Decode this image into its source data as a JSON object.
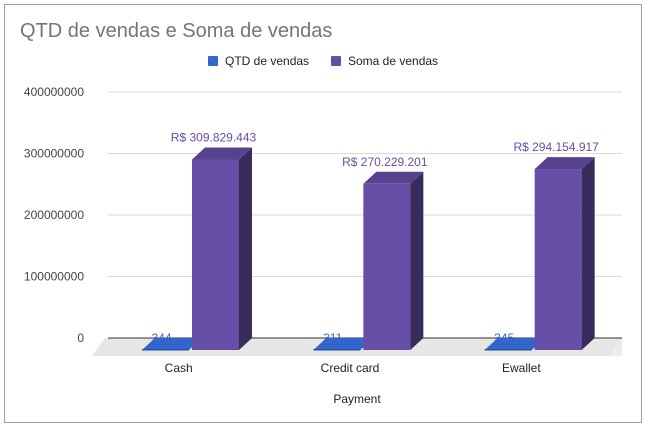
{
  "chart_data": {
    "type": "bar",
    "title": "QTD de vendas e Soma de vendas",
    "xlabel": "Payment",
    "ylabel": "",
    "categories": [
      "Cash",
      "Credit card",
      "Ewallet"
    ],
    "ylim": [
      0,
      400000000
    ],
    "yticks": [
      "0",
      "100000000",
      "200000000",
      "300000000",
      "400000000"
    ],
    "grid": true,
    "legend_position": "top",
    "style": "3d",
    "series": [
      {
        "name": "QTD de vendas",
        "color": "#3366cc",
        "values": [
          344,
          311,
          345
        ],
        "labels": [
          "344",
          "311",
          "345"
        ]
      },
      {
        "name": "Soma de vendas",
        "color": "#674ea7",
        "values": [
          309829443,
          270229201,
          294154917
        ],
        "labels": [
          "R$ 309.829.443",
          "R$ 270.229.201",
          "R$ 294.154.917"
        ]
      }
    ]
  }
}
